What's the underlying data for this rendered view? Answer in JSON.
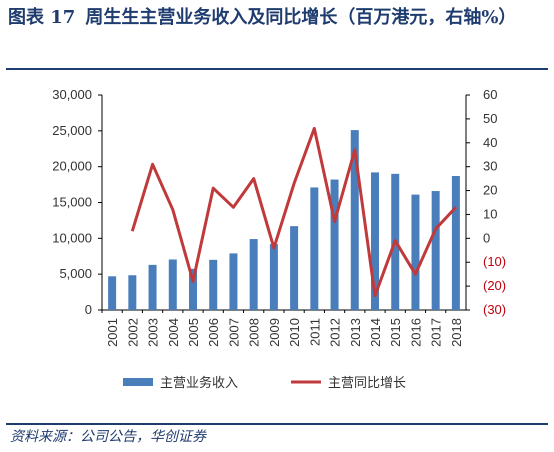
{
  "header": {
    "figure_label": "图表 17",
    "title_text": "周生生主营业务收入及同比增长（百万港元，右轴%）"
  },
  "footer": {
    "source": "资料来源：公司公告，华创证券"
  },
  "colors": {
    "bar": "#4a7ebb",
    "line": "#c0393b",
    "accent": "#1f3c6e",
    "negative_tick": "#c0000b"
  },
  "chart_data": {
    "type": "bar",
    "categories": [
      "2001",
      "2002",
      "2003",
      "2004",
      "2005",
      "2006",
      "2007",
      "2008",
      "2009",
      "2010",
      "2011",
      "2012",
      "2013",
      "2014",
      "2015",
      "2016",
      "2017",
      "2018"
    ],
    "series": [
      {
        "name": "主营业务收入",
        "type": "bar",
        "axis": "left",
        "values": [
          4700,
          4850,
          6300,
          7050,
          5750,
          7000,
          7900,
          9900,
          9200,
          11700,
          17100,
          18200,
          25100,
          19200,
          19000,
          16100,
          16600,
          18700
        ]
      },
      {
        "name": "主营同比增长",
        "type": "line",
        "axis": "right",
        "values": [
          null,
          3,
          31,
          12,
          -18,
          21,
          13,
          25,
          -4,
          23,
          46,
          7,
          37,
          -24,
          -1,
          -15,
          4,
          13
        ]
      }
    ],
    "y_left": {
      "lim": [
        0,
        30000
      ],
      "ticks": [
        "0",
        "5,000",
        "10,000",
        "15,000",
        "20,000",
        "25,000",
        "30,000"
      ],
      "tick_values": [
        0,
        5000,
        10000,
        15000,
        20000,
        25000,
        30000
      ]
    },
    "y_right": {
      "lim": [
        -30,
        60
      ],
      "ticks": [
        "(30)",
        "(20)",
        "(10)",
        "0",
        "10",
        "20",
        "30",
        "40",
        "50",
        "60"
      ],
      "tick_values": [
        -30,
        -20,
        -10,
        0,
        10,
        20,
        30,
        40,
        50,
        60
      ]
    },
    "legend_position": "bottom",
    "grid": false
  }
}
